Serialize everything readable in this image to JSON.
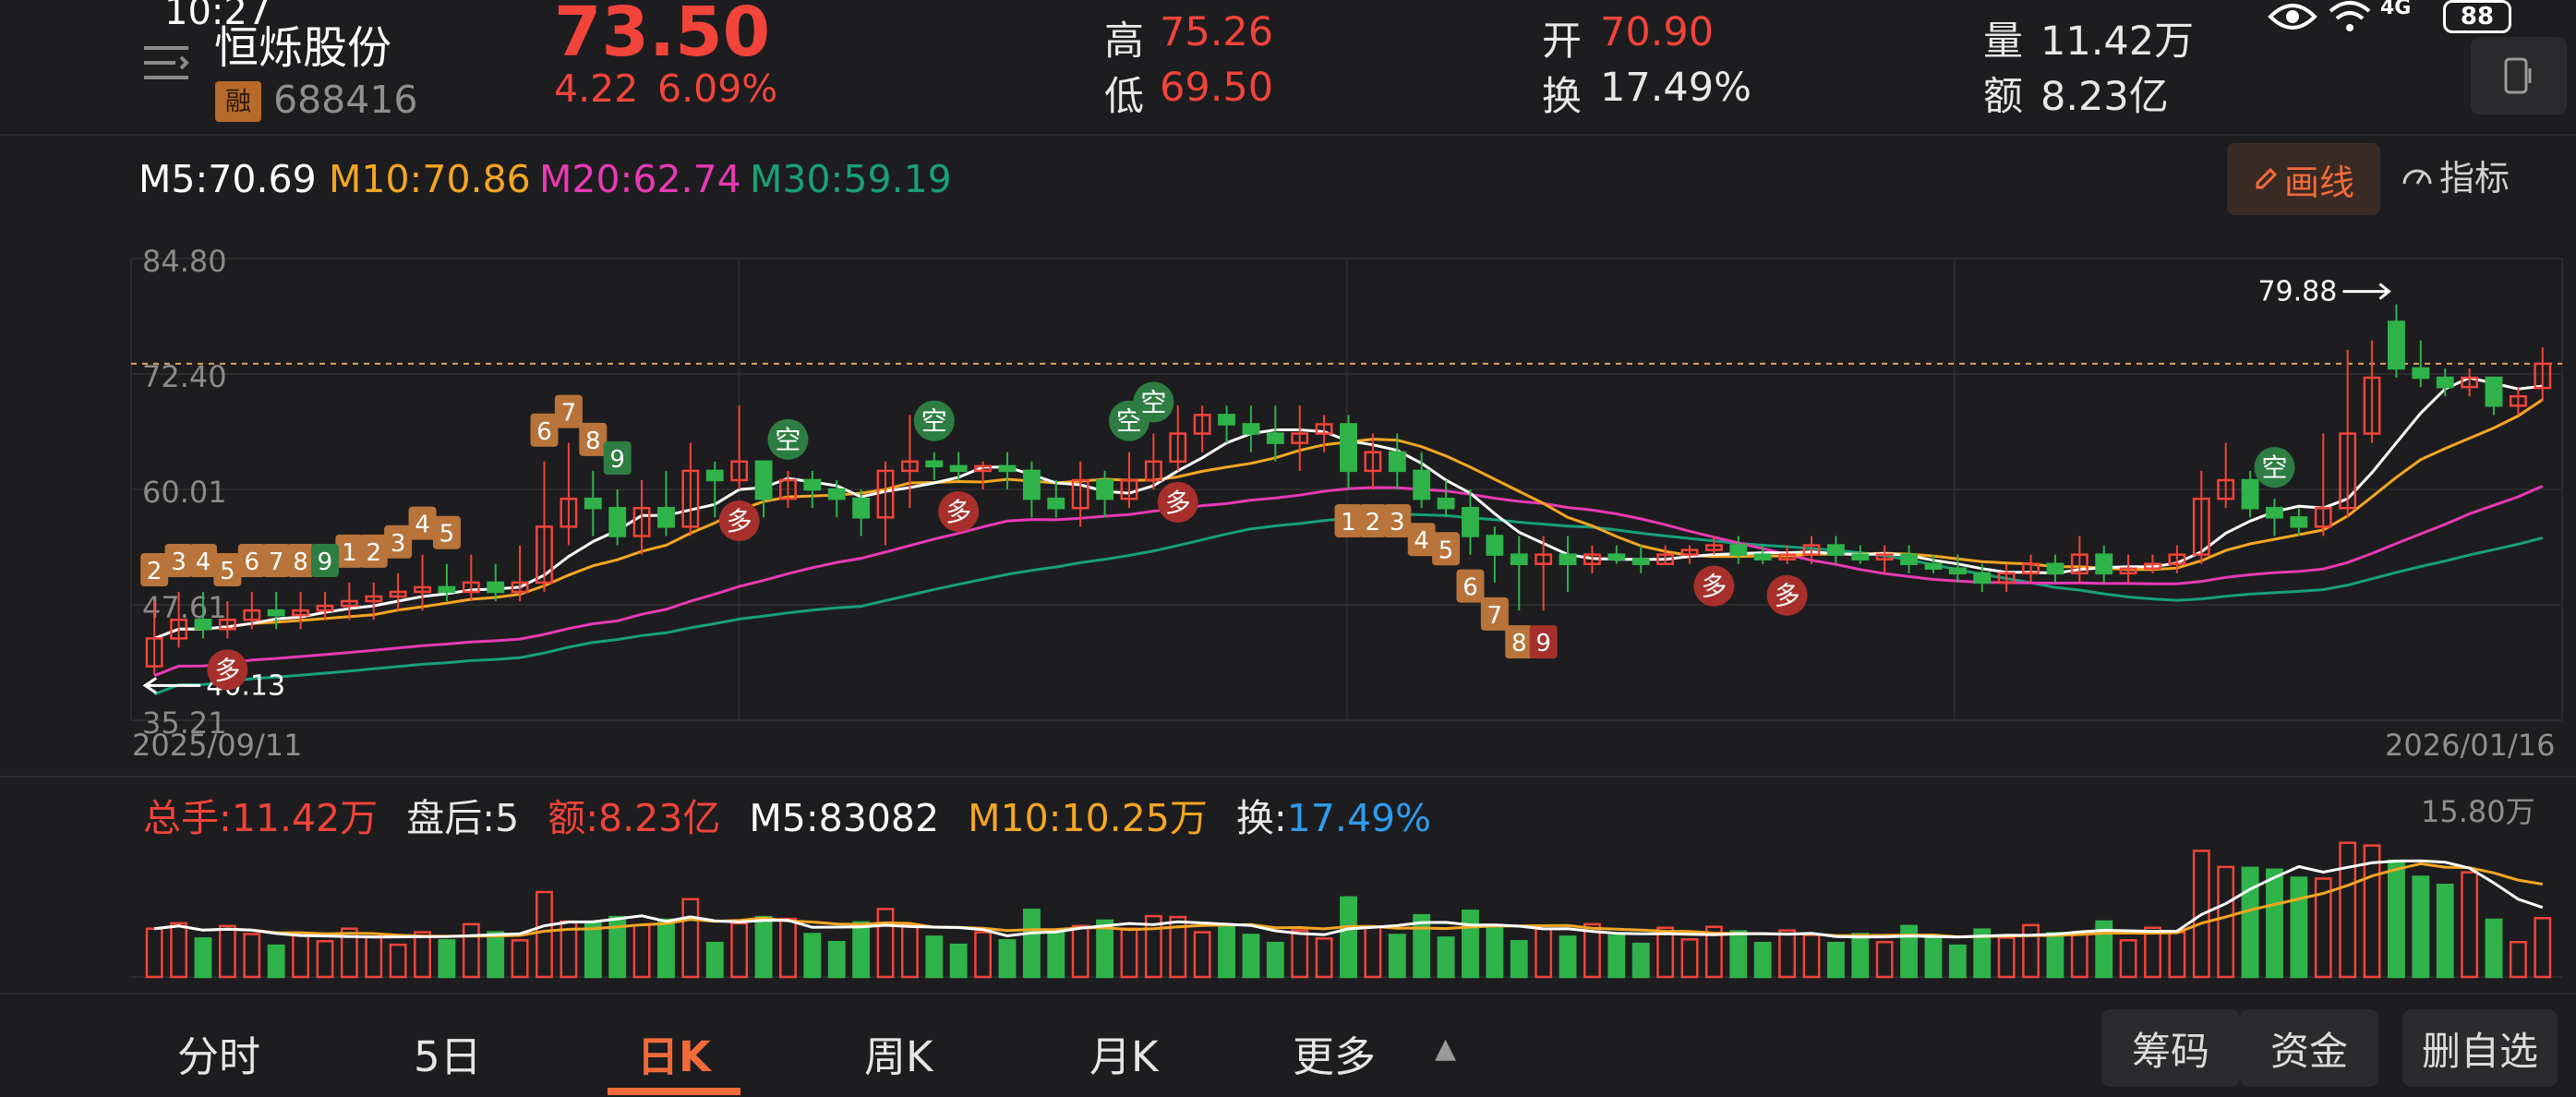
{
  "status_bar": {
    "time": "10:27",
    "battery": "88",
    "network": "4G"
  },
  "stock": {
    "name": "恒烁股份",
    "margin_tag": "融",
    "code": "688416",
    "price": "73.50",
    "change": "4.22",
    "change_pct": "6.09%",
    "high_label": "高",
    "high": "75.26",
    "low_label": "低",
    "low": "69.50",
    "open_label": "开",
    "open": "70.90",
    "turnover_label": "换",
    "turnover": "17.49%",
    "volume_label": "量",
    "volume": "11.42万",
    "amount_label": "额",
    "amount": "8.23亿"
  },
  "ma_legend": {
    "m5": "M5:70.69",
    "m10": "M10:70.86",
    "m20": "M20:62.74",
    "m30": "M30:59.19"
  },
  "toolbar": {
    "draw_label": "画线",
    "indicator_label": "指标"
  },
  "kline_axis": {
    "y_ticks": [
      "84.80",
      "72.40",
      "60.01",
      "47.61",
      "35.21"
    ],
    "date_start": "2025/09/11",
    "date_end": "2026/01/16"
  },
  "kline_annotations": {
    "max_label": "79.88",
    "min_label": "40.13"
  },
  "signals": {
    "short": "空",
    "long": "多"
  },
  "volume_legend": {
    "total_label": "总手:",
    "total": "11.42万",
    "after_label": "盘后:",
    "after": "5",
    "amount_label": "额:",
    "amount": "8.23亿",
    "m5": "M5:83082",
    "m10": "M10:10.25万",
    "turnover_label": "换:",
    "turnover": "17.49%",
    "max": "15.80万"
  },
  "bottom_tabs": [
    "分时",
    "5日",
    "日K",
    "周K",
    "月K",
    "更多"
  ],
  "bottom_buttons": {
    "chips": "筹码",
    "funds": "资金",
    "remove": "删自选"
  },
  "colors": {
    "up": "#f2443a",
    "down": "#2fb34a",
    "ma5": "#ffffff",
    "ma10": "#f5a623",
    "ma20": "#e83ab4",
    "ma30": "#18a07a",
    "accent": "#f26b3a"
  },
  "chart_data": {
    "type": "candlestick",
    "x_range": [
      "2025/09/11",
      "2026/01/16"
    ],
    "ylim": [
      35.21,
      84.8
    ],
    "y_ticks": [
      84.8,
      72.4,
      60.01,
      47.61,
      35.21
    ],
    "candles": [
      {
        "o": 41,
        "c": 44,
        "h": 48,
        "l": 40.13
      },
      {
        "o": 44,
        "c": 46,
        "h": 49,
        "l": 43
      },
      {
        "o": 46,
        "c": 45,
        "h": 49,
        "l": 44
      },
      {
        "o": 45,
        "c": 46,
        "h": 48,
        "l": 44
      },
      {
        "o": 46,
        "c": 47,
        "h": 49,
        "l": 45
      },
      {
        "o": 47,
        "c": 46.5,
        "h": 49,
        "l": 45
      },
      {
        "o": 46.5,
        "c": 47,
        "h": 49,
        "l": 45
      },
      {
        "o": 47,
        "c": 47.5,
        "h": 49,
        "l": 46
      },
      {
        "o": 47.5,
        "c": 48,
        "h": 50,
        "l": 46
      },
      {
        "o": 48,
        "c": 48.5,
        "h": 50,
        "l": 46
      },
      {
        "o": 48.5,
        "c": 49,
        "h": 51,
        "l": 47
      },
      {
        "o": 49,
        "c": 49.5,
        "h": 53,
        "l": 47
      },
      {
        "o": 49.5,
        "c": 49,
        "h": 52,
        "l": 48
      },
      {
        "o": 49,
        "c": 50,
        "h": 53,
        "l": 48
      },
      {
        "o": 50,
        "c": 49,
        "h": 52,
        "l": 48
      },
      {
        "o": 49,
        "c": 50,
        "h": 54,
        "l": 48
      },
      {
        "o": 50,
        "c": 56,
        "h": 63,
        "l": 49
      },
      {
        "o": 56,
        "c": 59,
        "h": 65,
        "l": 54
      },
      {
        "o": 59,
        "c": 58,
        "h": 62,
        "l": 55
      },
      {
        "o": 58,
        "c": 55,
        "h": 60,
        "l": 54
      },
      {
        "o": 55,
        "c": 58,
        "h": 61,
        "l": 53
      },
      {
        "o": 58,
        "c": 56,
        "h": 62,
        "l": 55
      },
      {
        "o": 56,
        "c": 62,
        "h": 65,
        "l": 55
      },
      {
        "o": 62,
        "c": 61,
        "h": 63,
        "l": 57
      },
      {
        "o": 61,
        "c": 63,
        "h": 69,
        "l": 60
      },
      {
        "o": 63,
        "c": 59,
        "h": 63,
        "l": 57
      },
      {
        "o": 59,
        "c": 61,
        "h": 62,
        "l": 58
      },
      {
        "o": 61,
        "c": 60,
        "h": 62,
        "l": 58
      },
      {
        "o": 60,
        "c": 59,
        "h": 61,
        "l": 57
      },
      {
        "o": 59,
        "c": 57,
        "h": 60,
        "l": 55
      },
      {
        "o": 57,
        "c": 62,
        "h": 63,
        "l": 54
      },
      {
        "o": 62,
        "c": 63,
        "h": 68,
        "l": 58
      },
      {
        "o": 63,
        "c": 62.5,
        "h": 64,
        "l": 61
      },
      {
        "o": 62.5,
        "c": 62,
        "h": 64,
        "l": 61
      },
      {
        "o": 62,
        "c": 62.5,
        "h": 63,
        "l": 60
      },
      {
        "o": 62.5,
        "c": 62,
        "h": 64,
        "l": 60
      },
      {
        "o": 62,
        "c": 59,
        "h": 63,
        "l": 57
      },
      {
        "o": 59,
        "c": 58,
        "h": 61,
        "l": 57
      },
      {
        "o": 58,
        "c": 61,
        "h": 63,
        "l": 56
      },
      {
        "o": 61,
        "c": 59,
        "h": 62,
        "l": 57
      },
      {
        "o": 59,
        "c": 61,
        "h": 64,
        "l": 58
      },
      {
        "o": 61,
        "c": 63,
        "h": 66,
        "l": 60
      },
      {
        "o": 63,
        "c": 66,
        "h": 69,
        "l": 62
      },
      {
        "o": 66,
        "c": 68,
        "h": 69,
        "l": 64
      },
      {
        "o": 68,
        "c": 67,
        "h": 69,
        "l": 65
      },
      {
        "o": 67,
        "c": 66,
        "h": 69,
        "l": 64
      },
      {
        "o": 66,
        "c": 65,
        "h": 69,
        "l": 63
      },
      {
        "o": 65,
        "c": 66,
        "h": 69,
        "l": 62
      },
      {
        "o": 66,
        "c": 67,
        "h": 68,
        "l": 64
      },
      {
        "o": 67,
        "c": 62,
        "h": 68,
        "l": 60
      },
      {
        "o": 62,
        "c": 64,
        "h": 66,
        "l": 60
      },
      {
        "o": 64,
        "c": 62,
        "h": 66,
        "l": 60
      },
      {
        "o": 62,
        "c": 59,
        "h": 64,
        "l": 58
      },
      {
        "o": 59,
        "c": 58,
        "h": 61,
        "l": 57
      },
      {
        "o": 58,
        "c": 55,
        "h": 60,
        "l": 53
      },
      {
        "o": 55,
        "c": 53,
        "h": 56,
        "l": 50
      },
      {
        "o": 53,
        "c": 52,
        "h": 55,
        "l": 47
      },
      {
        "o": 52,
        "c": 53,
        "h": 55,
        "l": 47
      },
      {
        "o": 53,
        "c": 52,
        "h": 55,
        "l": 49
      },
      {
        "o": 52,
        "c": 53,
        "h": 54,
        "l": 51
      },
      {
        "o": 53,
        "c": 52.5,
        "h": 54,
        "l": 52
      },
      {
        "o": 52.5,
        "c": 52,
        "h": 54,
        "l": 51
      },
      {
        "o": 52,
        "c": 53,
        "h": 54,
        "l": 52
      },
      {
        "o": 53,
        "c": 53.5,
        "h": 54,
        "l": 52
      },
      {
        "o": 53.5,
        "c": 54,
        "h": 55,
        "l": 53
      },
      {
        "o": 54,
        "c": 53,
        "h": 55,
        "l": 52
      },
      {
        "o": 53,
        "c": 52.5,
        "h": 54,
        "l": 52
      },
      {
        "o": 52.5,
        "c": 53,
        "h": 54,
        "l": 52
      },
      {
        "o": 53,
        "c": 54,
        "h": 55,
        "l": 52
      },
      {
        "o": 54,
        "c": 53,
        "h": 55,
        "l": 52
      },
      {
        "o": 53,
        "c": 52.5,
        "h": 54,
        "l": 52
      },
      {
        "o": 52.5,
        "c": 53,
        "h": 54,
        "l": 51
      },
      {
        "o": 53,
        "c": 52,
        "h": 54,
        "l": 51
      },
      {
        "o": 52,
        "c": 51.5,
        "h": 53,
        "l": 51
      },
      {
        "o": 51.5,
        "c": 51,
        "h": 53,
        "l": 50
      },
      {
        "o": 51,
        "c": 50,
        "h": 52,
        "l": 49
      },
      {
        "o": 50,
        "c": 51,
        "h": 52,
        "l": 49
      },
      {
        "o": 51,
        "c": 52,
        "h": 53,
        "l": 50
      },
      {
        "o": 52,
        "c": 51,
        "h": 53,
        "l": 50
      },
      {
        "o": 51,
        "c": 53,
        "h": 55,
        "l": 50
      },
      {
        "o": 53,
        "c": 51,
        "h": 54,
        "l": 50
      },
      {
        "o": 51,
        "c": 51.5,
        "h": 53,
        "l": 50
      },
      {
        "o": 51.5,
        "c": 52,
        "h": 53,
        "l": 51
      },
      {
        "o": 52,
        "c": 53,
        "h": 54,
        "l": 51
      },
      {
        "o": 53,
        "c": 59,
        "h": 62,
        "l": 52
      },
      {
        "o": 59,
        "c": 61,
        "h": 65,
        "l": 58
      },
      {
        "o": 61,
        "c": 58,
        "h": 62,
        "l": 57
      },
      {
        "o": 58,
        "c": 57,
        "h": 59,
        "l": 55
      },
      {
        "o": 57,
        "c": 56,
        "h": 58,
        "l": 55
      },
      {
        "o": 56,
        "c": 58,
        "h": 66,
        "l": 55
      },
      {
        "o": 58,
        "c": 66,
        "h": 75,
        "l": 57
      },
      {
        "o": 66,
        "c": 72,
        "h": 76,
        "l": 65
      },
      {
        "o": 78,
        "c": 73,
        "h": 79.88,
        "l": 72
      },
      {
        "o": 73,
        "c": 72,
        "h": 76,
        "l": 71
      },
      {
        "o": 72,
        "c": 71,
        "h": 73,
        "l": 70
      },
      {
        "o": 71,
        "c": 72,
        "h": 73,
        "l": 70
      },
      {
        "o": 72,
        "c": 69,
        "h": 72,
        "l": 68
      },
      {
        "o": 69,
        "c": 70,
        "h": 71,
        "l": 68
      },
      {
        "o": 70.9,
        "c": 73.5,
        "h": 75.26,
        "l": 69.5
      }
    ]
  }
}
